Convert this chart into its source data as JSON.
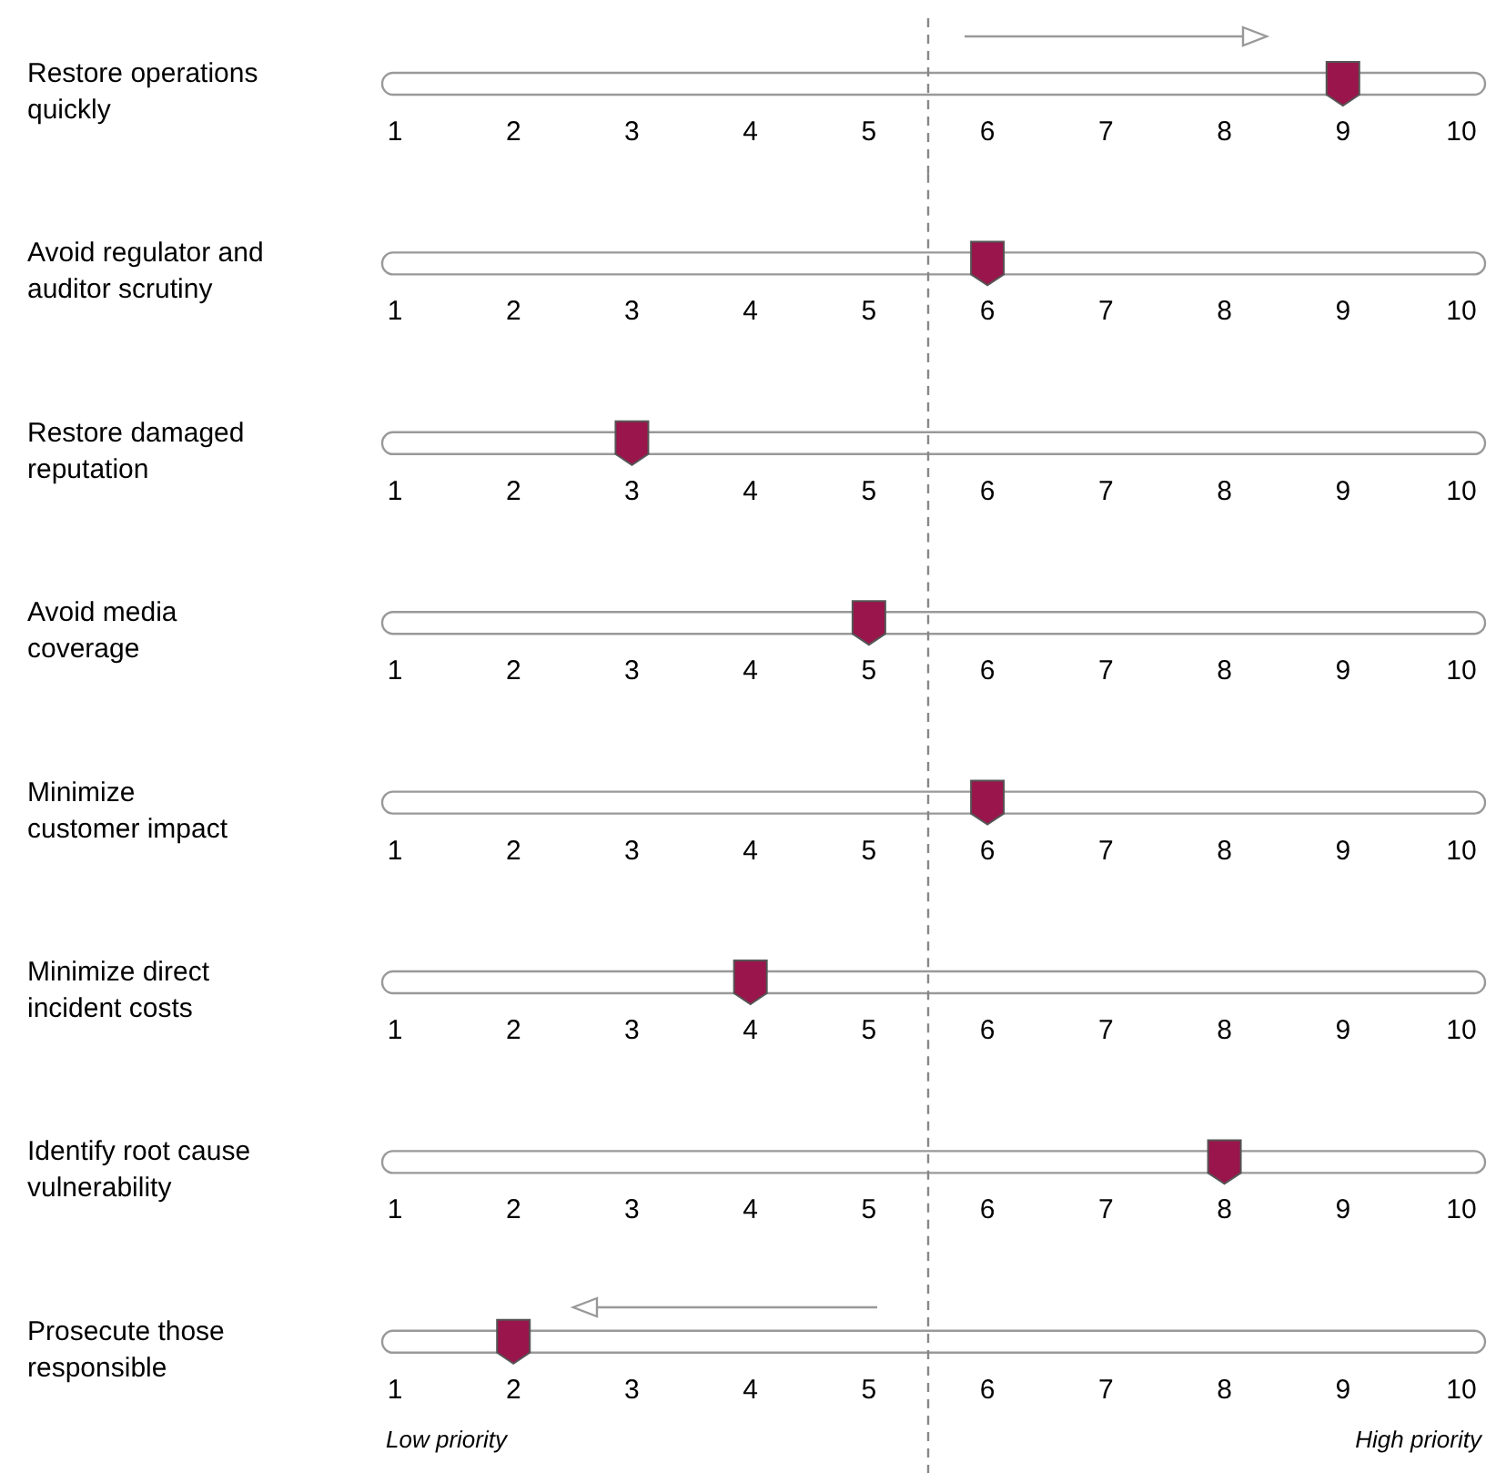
{
  "chart_data": [
    {
      "type": "scatter",
      "orientation": "horizontal",
      "categories": [
        "Restore operations\nquickly"
      ],
      "values": [
        9
      ],
      "color": "#99154b",
      "xlim": [
        1,
        10
      ],
      "xticks": [
        1,
        2,
        3,
        4,
        5,
        6,
        7,
        8,
        9,
        10
      ],
      "ref_lines": [
        {
          "axis": "x",
          "value": 5.5,
          "color": "#888888",
          "line_style": "dashed"
        }
      ]
    },
    {
      "type": "scatter",
      "orientation": "horizontal",
      "categories": [
        "Avoid regulator and\nauditor scrutiny"
      ],
      "values": [
        6
      ],
      "color": "#99154b",
      "xlim": [
        1,
        10
      ],
      "xticks": [
        1,
        2,
        3,
        4,
        5,
        6,
        7,
        8,
        9,
        10
      ],
      "ref_lines": [
        {
          "axis": "x",
          "value": 5.5,
          "color": "#888888",
          "line_style": "dashed"
        }
      ]
    },
    {
      "type": "scatter",
      "orientation": "horizontal",
      "categories": [
        "Restore damaged\nreputation"
      ],
      "values": [
        3
      ],
      "color": "#99154b",
      "xlim": [
        1,
        10
      ],
      "xticks": [
        1,
        2,
        3,
        4,
        5,
        6,
        7,
        8,
        9,
        10
      ],
      "ref_lines": [
        {
          "axis": "x",
          "value": 5.5,
          "color": "#888888",
          "line_style": "dashed"
        }
      ]
    },
    {
      "type": "scatter",
      "orientation": "horizontal",
      "categories": [
        "Avoid media\ncoverage"
      ],
      "values": [
        5
      ],
      "color": "#99154b",
      "xlim": [
        1,
        10
      ],
      "xticks": [
        1,
        2,
        3,
        4,
        5,
        6,
        7,
        8,
        9,
        10
      ],
      "ref_lines": [
        {
          "axis": "x",
          "value": 5.5,
          "color": "#888888",
          "line_style": "dashed"
        }
      ]
    },
    {
      "type": "scatter",
      "orientation": "horizontal",
      "categories": [
        "Minimize\ncustomer impact"
      ],
      "values": [
        6
      ],
      "color": "#99154b",
      "xlim": [
        1,
        10
      ],
      "xticks": [
        1,
        2,
        3,
        4,
        5,
        6,
        7,
        8,
        9,
        10
      ],
      "ref_lines": [
        {
          "axis": "x",
          "value": 5.5,
          "color": "#888888",
          "line_style": "dashed"
        }
      ]
    },
    {
      "type": "scatter",
      "orientation": "horizontal",
      "categories": [
        "Minimize direct\nincident costs"
      ],
      "values": [
        4
      ],
      "color": "#99154b",
      "xlim": [
        1,
        10
      ],
      "xticks": [
        1,
        2,
        3,
        4,
        5,
        6,
        7,
        8,
        9,
        10
      ],
      "ref_lines": [
        {
          "axis": "x",
          "value": 5.5,
          "color": "#888888",
          "line_style": "dashed"
        }
      ]
    },
    {
      "type": "scatter",
      "orientation": "horizontal",
      "categories": [
        "Identify root cause\nvulnerability"
      ],
      "values": [
        8
      ],
      "color": "#99154b",
      "xlim": [
        1,
        10
      ],
      "xticks": [
        1,
        2,
        3,
        4,
        5,
        6,
        7,
        8,
        9,
        10
      ],
      "ref_lines": [
        {
          "axis": "x",
          "value": 5.5,
          "color": "#888888",
          "line_style": "dashed"
        }
      ]
    },
    {
      "type": "scatter",
      "orientation": "horizontal",
      "categories": [
        "Prosecute those\nresponsible"
      ],
      "values": [
        2
      ],
      "color": "#99154b",
      "xlim": [
        1,
        10
      ],
      "xticks": [
        1,
        2,
        3,
        4,
        5,
        6,
        7,
        8,
        9,
        10
      ],
      "ref_lines": [
        {
          "axis": "x",
          "value": 5.5,
          "color": "#888888",
          "line_style": "dashed"
        }
      ],
      "annotations": [
        "Low priority",
        "High priority"
      ]
    }
  ]
}
